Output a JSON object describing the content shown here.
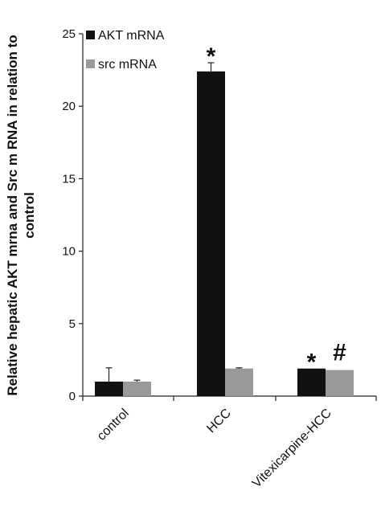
{
  "chart_data": {
    "type": "bar",
    "title": "",
    "xlabel": "",
    "ylabel_lines": [
      "Relative hepatic AKT mrna and Src m RNA in relation to",
      "control"
    ],
    "ylim": [
      0,
      25
    ],
    "yticks": [
      0,
      5,
      10,
      15,
      20,
      25
    ],
    "ytick_labels": [
      "0",
      "5",
      "10",
      "15",
      "20",
      "25"
    ],
    "categories": [
      "control",
      "HCC",
      "Vitexicarpine-HCC"
    ],
    "series": [
      {
        "name": "AKT mRNA",
        "color": "#111111",
        "values": [
          1.0,
          22.4,
          1.9
        ],
        "errors": [
          0.95,
          0.6,
          0.0
        ]
      },
      {
        "name": "src mRNA",
        "color": "#999999",
        "values": [
          1.0,
          1.9,
          1.8
        ],
        "errors": [
          0.1,
          0.05,
          0.0
        ]
      }
    ],
    "annotations": [
      {
        "category": 1,
        "series": 0,
        "text": "*"
      },
      {
        "category": 2,
        "series": 0,
        "text": "*"
      },
      {
        "category": 2,
        "series": 1,
        "text": "#"
      }
    ],
    "legend": {
      "position": "top-left",
      "entries": [
        "AKT mRNA",
        "src mRNA"
      ]
    },
    "grid": false
  }
}
